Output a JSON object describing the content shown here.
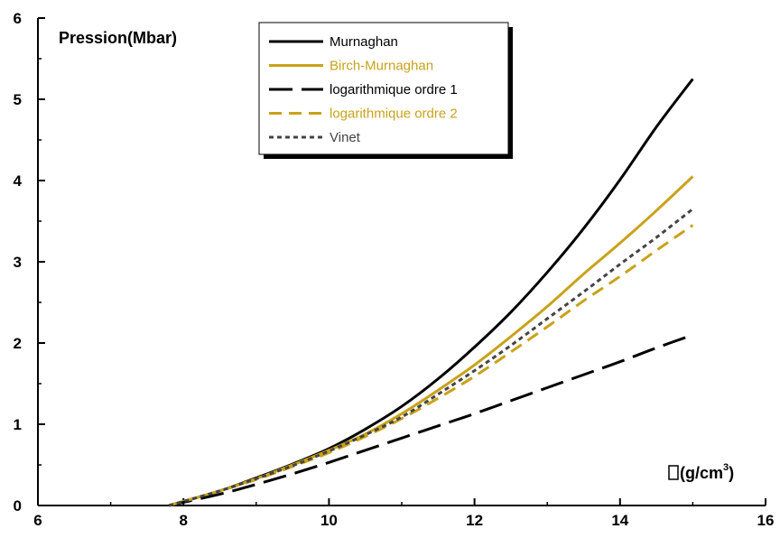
{
  "chart_data": {
    "type": "line",
    "ylabel": "Pression(Mbar)",
    "xlabel": "(g/cm",
    "xlabel_sup": "3",
    "xlabel_close": ")",
    "xlim": [
      6,
      16
    ],
    "ylim": [
      0,
      6
    ],
    "xticks": [
      "6",
      "8",
      "10",
      "12",
      "14",
      "16"
    ],
    "yticks": [
      "0",
      "1",
      "2",
      "3",
      "4",
      "5",
      "6"
    ],
    "grid": false,
    "legend_position": "top-center",
    "series": [
      {
        "name": "Murnaghan",
        "color": "#000000",
        "dash": "solid",
        "x": [
          7.8,
          8.5,
          9.0,
          9.5,
          10.0,
          10.5,
          11.0,
          11.5,
          12.0,
          12.5,
          13.0,
          13.5,
          14.0,
          14.5,
          15.0
        ],
        "y": [
          0.0,
          0.18,
          0.34,
          0.51,
          0.7,
          0.94,
          1.22,
          1.56,
          1.95,
          2.38,
          2.87,
          3.41,
          4.01,
          4.66,
          5.25
        ]
      },
      {
        "name": "Birch-Murnaghan",
        "color": "#c9a21a",
        "dash": "solid",
        "x": [
          7.8,
          8.5,
          9.0,
          9.5,
          10.0,
          10.5,
          11.0,
          11.5,
          12.0,
          12.5,
          13.0,
          13.5,
          14.0,
          14.5,
          15.0
        ],
        "y": [
          0.0,
          0.18,
          0.33,
          0.5,
          0.68,
          0.88,
          1.13,
          1.42,
          1.73,
          2.08,
          2.45,
          2.85,
          3.23,
          3.63,
          4.05
        ]
      },
      {
        "name": "logarithmique ordre 1",
        "color": "#000000",
        "dash": "long",
        "x": [
          7.8,
          8.5,
          9.0,
          9.5,
          10.0,
          10.5,
          11.0,
          11.5,
          12.0,
          12.5,
          13.0,
          13.5,
          14.0,
          14.5,
          15.0
        ],
        "y": [
          0.0,
          0.14,
          0.26,
          0.39,
          0.53,
          0.68,
          0.83,
          0.98,
          1.13,
          1.29,
          1.45,
          1.61,
          1.77,
          1.94,
          2.1
        ]
      },
      {
        "name": "logarithmique ordre 2",
        "color": "#c9a21a",
        "dash": "medium",
        "x": [
          7.8,
          8.5,
          9.0,
          9.5,
          10.0,
          10.5,
          11.0,
          11.5,
          12.0,
          12.5,
          13.0,
          13.5,
          14.0,
          14.5,
          15.0
        ],
        "y": [
          0.0,
          0.18,
          0.32,
          0.48,
          0.65,
          0.85,
          1.07,
          1.32,
          1.59,
          1.89,
          2.2,
          2.52,
          2.82,
          3.14,
          3.45
        ]
      },
      {
        "name": "Vinet",
        "color": "#444444",
        "dash": "short",
        "x": [
          7.8,
          8.5,
          9.0,
          9.5,
          10.0,
          10.5,
          11.0,
          11.5,
          12.0,
          12.5,
          13.0,
          13.5,
          14.0,
          14.5,
          15.0
        ],
        "y": [
          0.0,
          0.18,
          0.33,
          0.49,
          0.67,
          0.87,
          1.09,
          1.37,
          1.66,
          1.97,
          2.3,
          2.63,
          2.97,
          3.3,
          3.65
        ]
      }
    ]
  }
}
